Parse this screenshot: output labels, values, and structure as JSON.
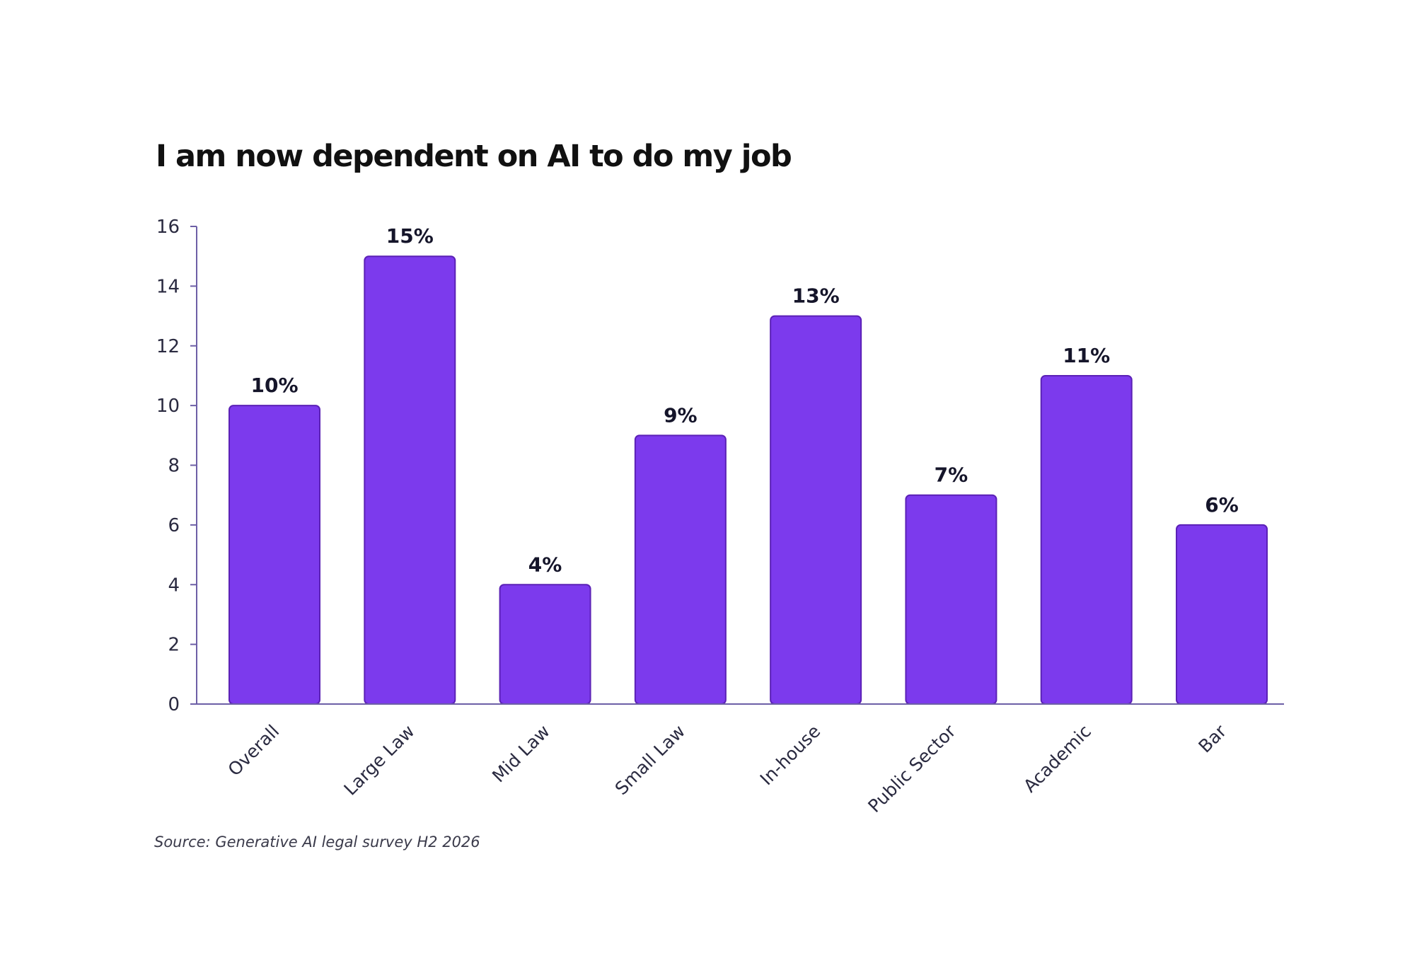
{
  "chart_data": {
    "type": "bar",
    "title": "I am now dependent on AI to do my job",
    "categories": [
      "Overall",
      "Large Law",
      "Mid Law",
      "Small Law",
      "In-house",
      "Public Sector",
      "Academic",
      "Bar"
    ],
    "values": [
      10,
      15,
      4,
      9,
      13,
      7,
      11,
      6
    ],
    "data_labels": [
      "10%",
      "15%",
      "4%",
      "9%",
      "13%",
      "7%",
      "11%",
      "6%"
    ],
    "ylim": [
      0,
      16
    ],
    "yticks": [
      0,
      2,
      4,
      6,
      8,
      10,
      12,
      14,
      16
    ],
    "grid": false,
    "legend": "none",
    "bar_color": "#7c3aed",
    "bar_edge_color": "#5b21b6",
    "axis_color": "#6d5fa6",
    "source": "Source: Generative AI legal survey H2 2026"
  }
}
